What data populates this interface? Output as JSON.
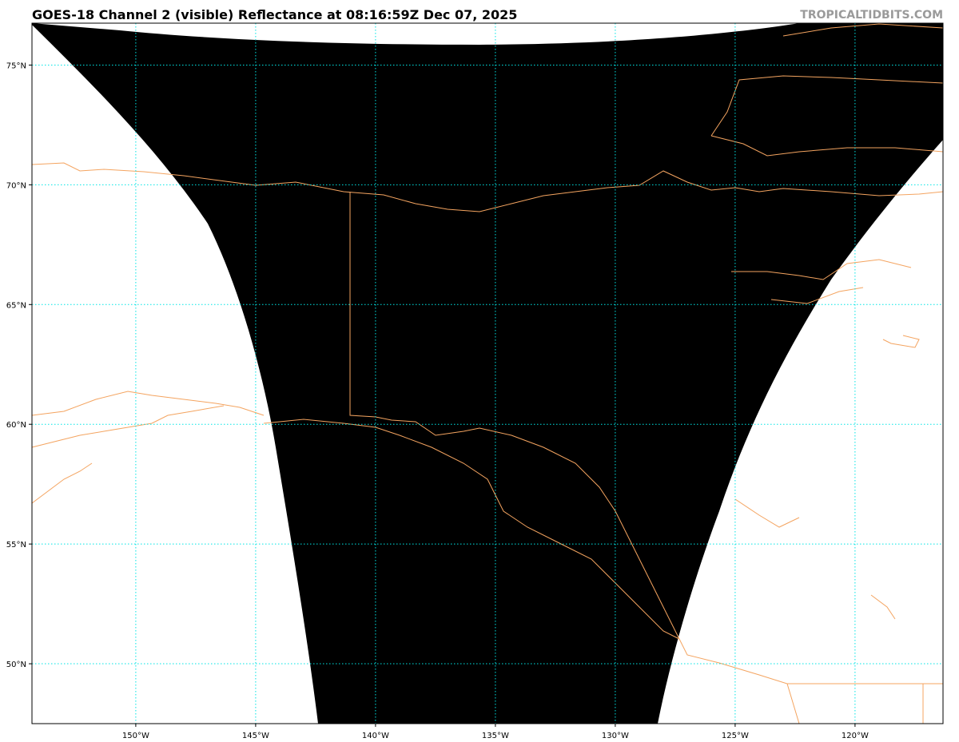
{
  "title": "GOES-18 Channel 2 (visible) Reflectance at 08:16:59Z Dec 07, 2025",
  "watermark": "TROPICALTIDBITS.COM",
  "map": {
    "lon_range": [
      -154.33,
      -116.33
    ],
    "lat_range": [
      47.5,
      76.75
    ],
    "lon_ticks": [
      {
        "value": -150,
        "label": "150°W"
      },
      {
        "value": -145,
        "label": "145°W"
      },
      {
        "value": -140,
        "label": "140°W"
      },
      {
        "value": -135,
        "label": "135°W"
      },
      {
        "value": -130,
        "label": "130°W"
      },
      {
        "value": -125,
        "label": "125°W"
      },
      {
        "value": -120,
        "label": "120°W"
      }
    ],
    "lat_ticks": [
      {
        "value": 75,
        "label": "75°N"
      },
      {
        "value": 70,
        "label": "70°N"
      },
      {
        "value": 65,
        "label": "65°N"
      },
      {
        "value": 60,
        "label": "60°N"
      },
      {
        "value": 55,
        "label": "55°N"
      },
      {
        "value": 50,
        "label": "50°N"
      }
    ],
    "colors": {
      "gridlines": "#00e5e5",
      "coastlines": "#f4a460",
      "imagery": "#000000",
      "no_data": "#ffffff"
    }
  }
}
